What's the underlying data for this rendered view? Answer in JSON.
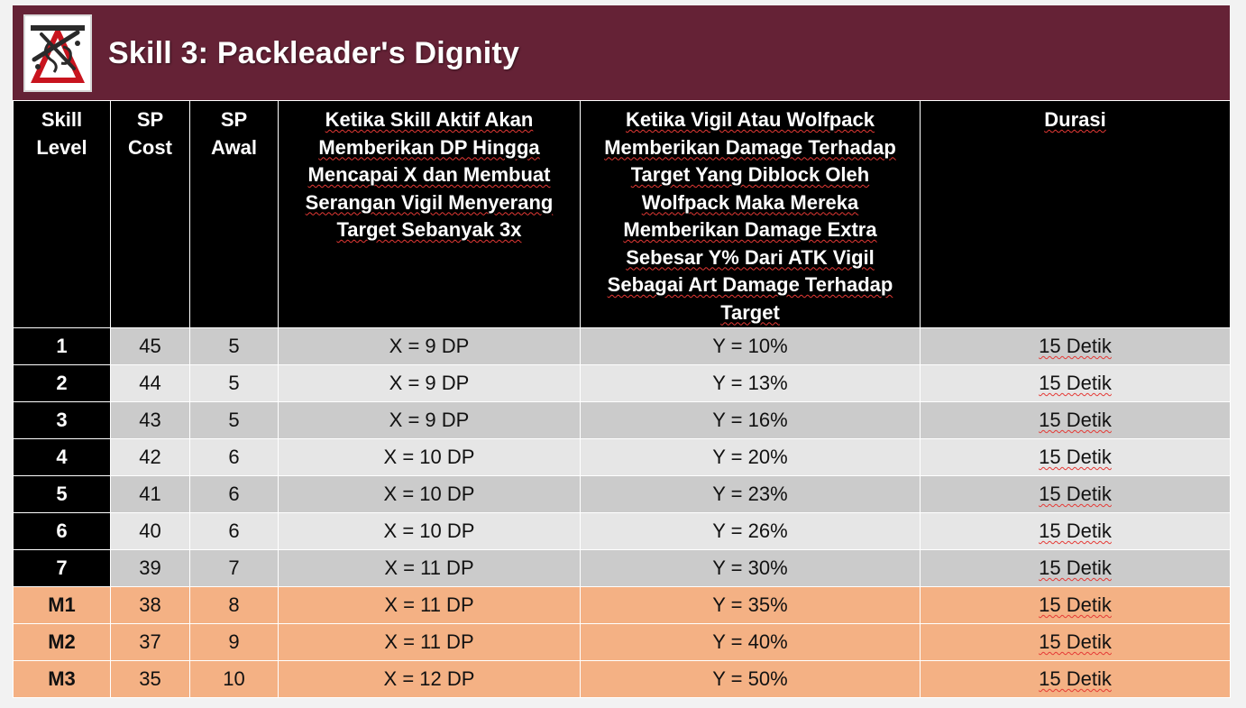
{
  "header": {
    "title": "Skill 3: Packleader's Dignity",
    "logo_icon": "vigil-class-emblem-icon"
  },
  "colors": {
    "banner": "#652236",
    "header_row": "#000000",
    "row_dark": "#cbcbcb",
    "row_light": "#e6e6e6",
    "mastery_row": "#f4b184"
  },
  "table": {
    "columns": [
      "Skill Level",
      "SP Cost",
      "SP Awal",
      "Ketika Skill Aktif Akan Memberikan DP Hingga Mencapai X dan Membuat Serangan Vigil Menyerang Target Sebanyak 3x",
      "Ketika Vigil Atau Wolfpack Memberikan Damage Terhadap Target Yang Diblock Oleh Wolfpack Maka  Mereka Memberikan Damage Extra Sebesar Y%  Dari ATK Vigil Sebagai Art Damage Terhadap Target",
      "Durasi"
    ],
    "rows": [
      {
        "level": "1",
        "sp_cost": "45",
        "sp_awal": "5",
        "x": "X = 9 DP",
        "y": "Y = 10%",
        "durasi": "15 Detik"
      },
      {
        "level": "2",
        "sp_cost": "44",
        "sp_awal": "5",
        "x": "X = 9 DP",
        "y": "Y = 13%",
        "durasi": "15 Detik"
      },
      {
        "level": "3",
        "sp_cost": "43",
        "sp_awal": "5",
        "x": "X = 9 DP",
        "y": "Y = 16%",
        "durasi": "15 Detik"
      },
      {
        "level": "4",
        "sp_cost": "42",
        "sp_awal": "6",
        "x": "X = 10 DP",
        "y": "Y = 20%",
        "durasi": "15 Detik"
      },
      {
        "level": "5",
        "sp_cost": "41",
        "sp_awal": "6",
        "x": "X = 10 DP",
        "y": "Y = 23%",
        "durasi": "15 Detik"
      },
      {
        "level": "6",
        "sp_cost": "40",
        "sp_awal": "6",
        "x": "X = 10 DP",
        "y": "Y = 26%",
        "durasi": "15 Detik"
      },
      {
        "level": "7",
        "sp_cost": "39",
        "sp_awal": "7",
        "x": "X = 11 DP",
        "y": "Y = 30%",
        "durasi": "15 Detik"
      },
      {
        "level": "M1",
        "sp_cost": "38",
        "sp_awal": "8",
        "x": "X = 11 DP",
        "y": "Y = 35%",
        "durasi": "15 Detik"
      },
      {
        "level": "M2",
        "sp_cost": "37",
        "sp_awal": "9",
        "x": "X = 11 DP",
        "y": "Y = 40%",
        "durasi": "15 Detik"
      },
      {
        "level": "M3",
        "sp_cost": "35",
        "sp_awal": "10",
        "x": "X = 12 DP",
        "y": "Y = 50%",
        "durasi": "15 Detik"
      }
    ]
  }
}
